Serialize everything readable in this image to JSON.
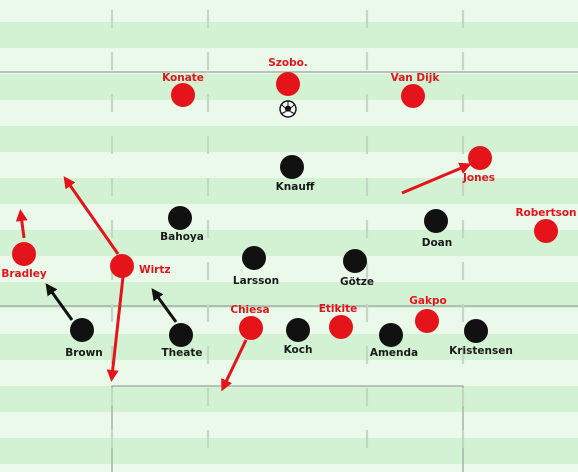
{
  "colors": {
    "stripe_light": "#eaf9ea",
    "stripe_dark": "#d3f2d3",
    "lines": "#9aa29a",
    "red_team": "#e5141b",
    "black_team": "#111111",
    "red_arrow": "#e5141b",
    "black_arrow": "#111111"
  },
  "ball": {
    "icon": "soccer-ball-icon"
  },
  "players_red": [
    {
      "id": "konate",
      "label": "Konate"
    },
    {
      "id": "szobo",
      "label": "Szobo."
    },
    {
      "id": "van-dijk",
      "label": "Van Dijk"
    },
    {
      "id": "jones",
      "label": "Jones"
    },
    {
      "id": "robertson",
      "label": "Robertson"
    },
    {
      "id": "bradley",
      "label": "Bradley"
    },
    {
      "id": "wirtz",
      "label": "Wirtz"
    },
    {
      "id": "chiesa",
      "label": "Chiesa"
    },
    {
      "id": "etikite",
      "label": "Etikite"
    },
    {
      "id": "gakpo",
      "label": "Gakpo"
    }
  ],
  "players_black": [
    {
      "id": "knauff",
      "label": "Knauff"
    },
    {
      "id": "bahoya",
      "label": "Bahoya"
    },
    {
      "id": "doan",
      "label": "Doan"
    },
    {
      "id": "larsson",
      "label": "Larsson"
    },
    {
      "id": "gotze",
      "label": "Götze"
    },
    {
      "id": "brown",
      "label": "Brown"
    },
    {
      "id": "theate",
      "label": "Theate"
    },
    {
      "id": "koch",
      "label": "Koch"
    },
    {
      "id": "amenda",
      "label": "Amenda"
    },
    {
      "id": "kristensen",
      "label": "Kristensen"
    }
  ]
}
